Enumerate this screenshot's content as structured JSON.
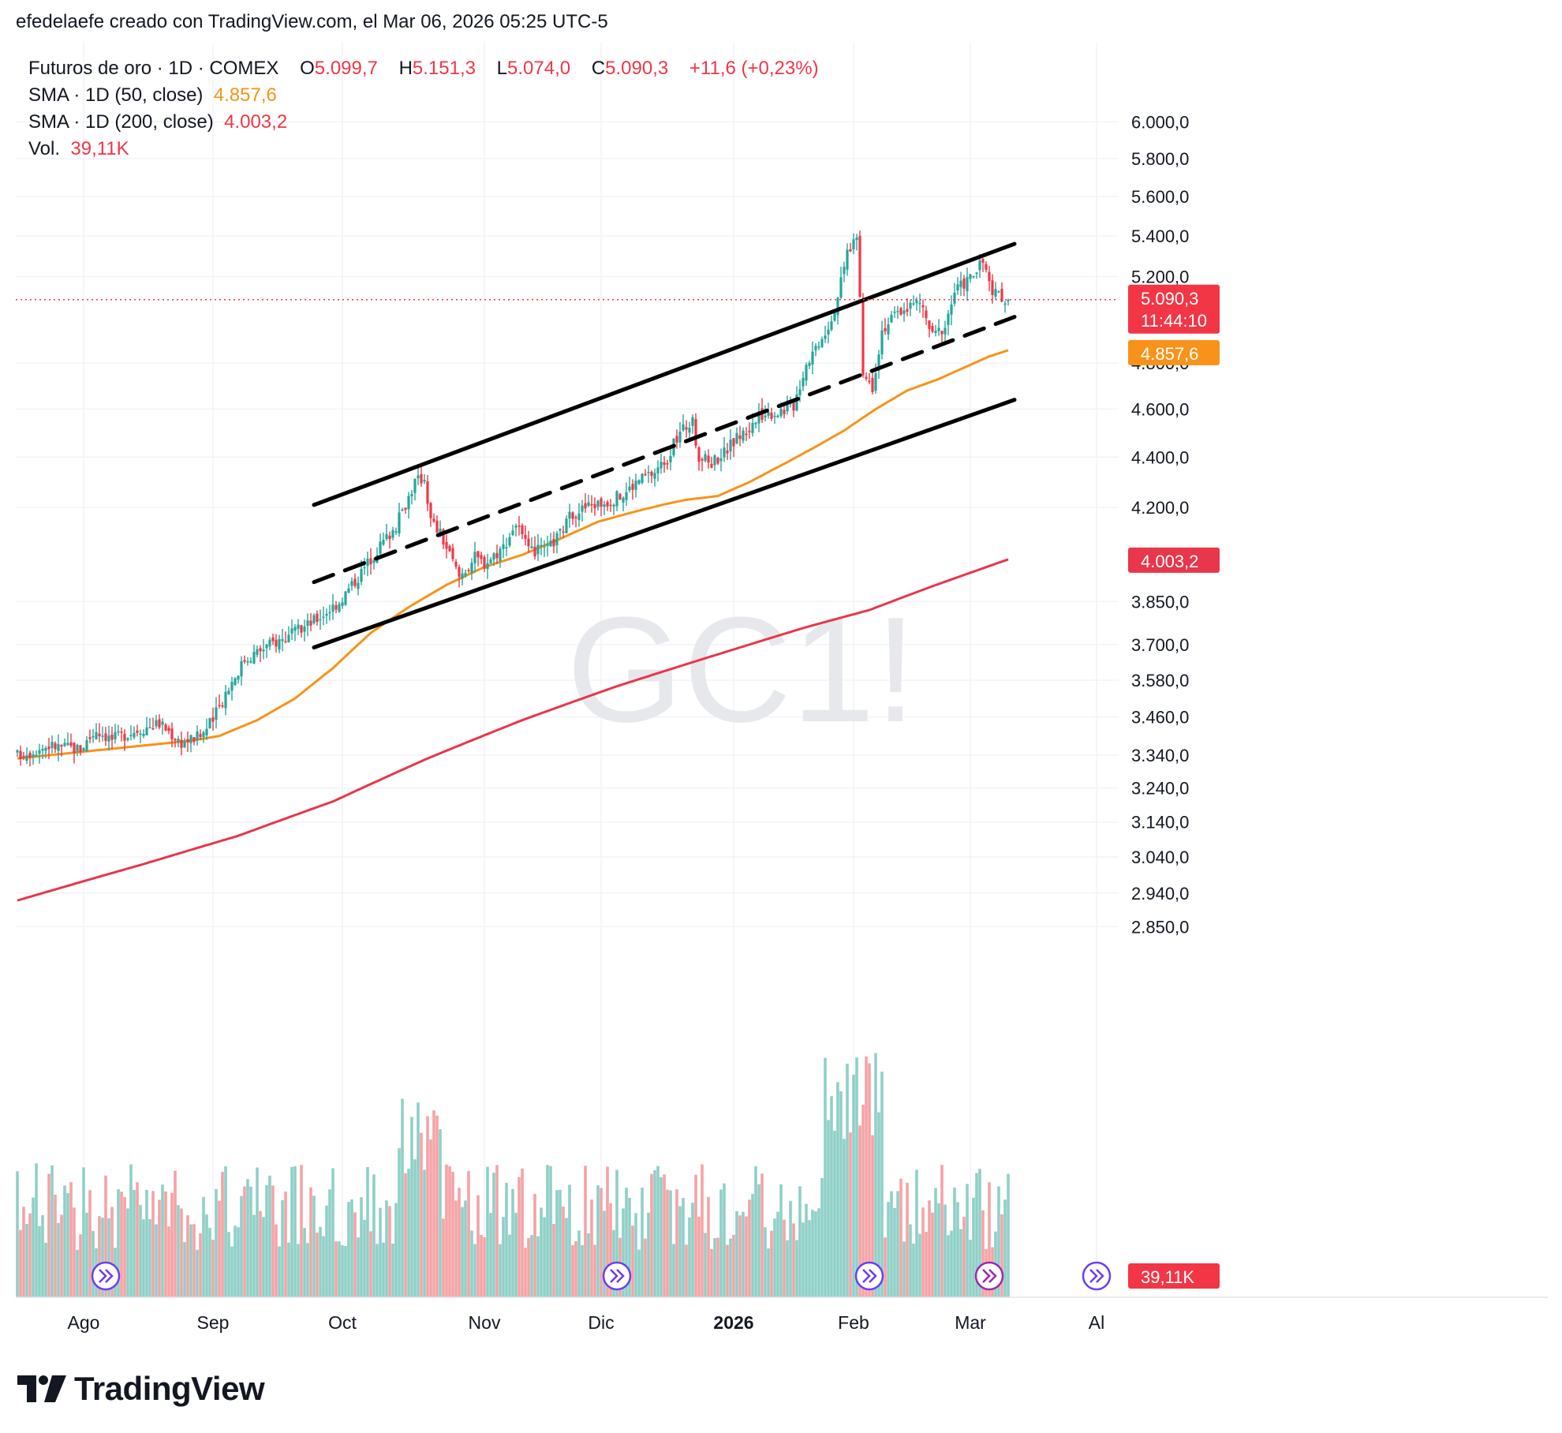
{
  "header": {
    "caption": "efedelaefe creado con TradingView.com, el Mar 06, 2026 05:25 UTC-5"
  },
  "legend": {
    "symbol": "Futuros de oro · 1D · COMEX",
    "o_label": "O",
    "o_value": "5.099,7",
    "h_label": "H",
    "h_value": "5.151,3",
    "l_label": "L",
    "l_value": "5.074,0",
    "c_label": "C",
    "c_value": "5.090,3",
    "change": "+11,6 (+0,23%)",
    "sma50_label": "SMA · 1D (50, close)",
    "sma50_value": "4.857,6",
    "sma200_label": "SMA · 1D (200, close)",
    "sma200_value": "4.003,2",
    "vol_label": "Vol.",
    "vol_value": "39,11K"
  },
  "watermark": "GC1!",
  "price_badges": {
    "last_price": "5.090,3",
    "countdown": "11:44:10",
    "sma50": "4.857,6",
    "sma200": "4.003,2",
    "volume": "39,11K"
  },
  "colors": {
    "up": "#26a69a",
    "down": "#f23645",
    "vol_up": "#8fd0c7",
    "vol_down": "#f5a3a6",
    "sma50": "#f7931a",
    "sma200": "#e8364a",
    "trendline": "#000000",
    "grid": "#f0f3fa"
  },
  "logo": {
    "text": "TradingView"
  },
  "chart_data": {
    "type": "candlestick",
    "symbol": "GC1!",
    "timeframe": "1D",
    "y_axis": {
      "scale": "log",
      "ticks": [
        6000,
        5800,
        5600,
        5400,
        5200,
        4800,
        4600,
        4400,
        4200,
        3850,
        3700,
        3580,
        3460,
        3340,
        3240,
        3140,
        3040,
        2940,
        2850
      ],
      "tick_labels": [
        "6.000,0",
        "5.800,0",
        "5.600,0",
        "5.400,0",
        "5.200,0",
        "4.800,0",
        "4.600,0",
        "4.400,0",
        "4.200,0",
        "3.850,0",
        "3.700,0",
        "3.580,0",
        "3.460,0",
        "3.340,0",
        "3.240,0",
        "3.140,0",
        "3.040,0",
        "2.940,0",
        "2.850,0"
      ]
    },
    "x_axis": {
      "labels": [
        "Ago",
        "Sep",
        "Oct",
        "Nov",
        "Dic",
        "2026",
        "Feb",
        "Mar",
        "Al"
      ],
      "label_bar_index": [
        21,
        62,
        103,
        148,
        185,
        227,
        265,
        302,
        342
      ]
    },
    "last_close": 5090.3,
    "close_path_anchors": [
      [
        0,
        3340
      ],
      [
        10,
        3370
      ],
      [
        20,
        3360
      ],
      [
        25,
        3420
      ],
      [
        30,
        3390
      ],
      [
        38,
        3420
      ],
      [
        45,
        3440
      ],
      [
        52,
        3380
      ],
      [
        58,
        3400
      ],
      [
        62,
        3450
      ],
      [
        66,
        3540
      ],
      [
        72,
        3650
      ],
      [
        80,
        3700
      ],
      [
        88,
        3740
      ],
      [
        95,
        3790
      ],
      [
        102,
        3850
      ],
      [
        108,
        3940
      ],
      [
        114,
        4040
      ],
      [
        120,
        4130
      ],
      [
        126,
        4300
      ],
      [
        129,
        4320
      ],
      [
        131,
        4150
      ],
      [
        134,
        4100
      ],
      [
        140,
        3940
      ],
      [
        145,
        4010
      ],
      [
        148,
        3990
      ],
      [
        154,
        4050
      ],
      [
        158,
        4140
      ],
      [
        162,
        4030
      ],
      [
        168,
        4040
      ],
      [
        172,
        4100
      ],
      [
        176,
        4180
      ],
      [
        182,
        4210
      ],
      [
        186,
        4220
      ],
      [
        192,
        4250
      ],
      [
        197,
        4310
      ],
      [
        202,
        4340
      ],
      [
        206,
        4400
      ],
      [
        210,
        4500
      ],
      [
        212,
        4530
      ],
      [
        214,
        4540
      ],
      [
        216,
        4400
      ],
      [
        220,
        4380
      ],
      [
        224,
        4420
      ],
      [
        228,
        4480
      ],
      [
        232,
        4520
      ],
      [
        236,
        4580
      ],
      [
        241,
        4590
      ],
      [
        246,
        4620
      ],
      [
        250,
        4800
      ],
      [
        254,
        4900
      ],
      [
        258,
        5000
      ],
      [
        261,
        5170
      ],
      [
        263,
        5320
      ],
      [
        266,
        5400
      ],
      [
        268,
        4750
      ],
      [
        271,
        4700
      ],
      [
        274,
        4950
      ],
      [
        277,
        5000
      ],
      [
        281,
        5050
      ],
      [
        286,
        5080
      ],
      [
        290,
        4920
      ],
      [
        294,
        4970
      ],
      [
        297,
        5130
      ],
      [
        300,
        5170
      ],
      [
        303,
        5210
      ],
      [
        306,
        5270
      ],
      [
        309,
        5120
      ],
      [
        312,
        5100
      ],
      [
        314,
        5090.3
      ]
    ],
    "sma50_anchors": [
      [
        0,
        3330
      ],
      [
        30,
        3360
      ],
      [
        50,
        3380
      ],
      [
        58,
        3390
      ],
      [
        64,
        3400
      ],
      [
        76,
        3450
      ],
      [
        88,
        3520
      ],
      [
        100,
        3620
      ],
      [
        112,
        3740
      ],
      [
        124,
        3830
      ],
      [
        136,
        3910
      ],
      [
        148,
        3975
      ],
      [
        160,
        4020
      ],
      [
        172,
        4080
      ],
      [
        184,
        4145
      ],
      [
        196,
        4185
      ],
      [
        206,
        4215
      ],
      [
        212,
        4230
      ],
      [
        222,
        4245
      ],
      [
        232,
        4300
      ],
      [
        244,
        4380
      ],
      [
        254,
        4450
      ],
      [
        262,
        4510
      ],
      [
        272,
        4600
      ],
      [
        282,
        4680
      ],
      [
        292,
        4730
      ],
      [
        300,
        4780
      ],
      [
        308,
        4830
      ],
      [
        314,
        4857.6
      ]
    ],
    "sma200_anchors": [
      [
        0,
        2920
      ],
      [
        40,
        3020
      ],
      [
        70,
        3100
      ],
      [
        100,
        3200
      ],
      [
        130,
        3330
      ],
      [
        160,
        3450
      ],
      [
        190,
        3560
      ],
      [
        220,
        3660
      ],
      [
        250,
        3760
      ],
      [
        270,
        3820
      ],
      [
        290,
        3905
      ],
      [
        314,
        4003.2
      ]
    ],
    "annotations": [
      {
        "type": "line",
        "style": "solid",
        "from": [
          94,
          4210
        ],
        "to": [
          316,
          5360
        ]
      },
      {
        "type": "line",
        "style": "dashed",
        "from": [
          94,
          3920
        ],
        "to": [
          316,
          5010
        ]
      },
      {
        "type": "line",
        "style": "solid",
        "from": [
          94,
          3690
        ],
        "to": [
          316,
          4640
        ]
      }
    ]
  }
}
